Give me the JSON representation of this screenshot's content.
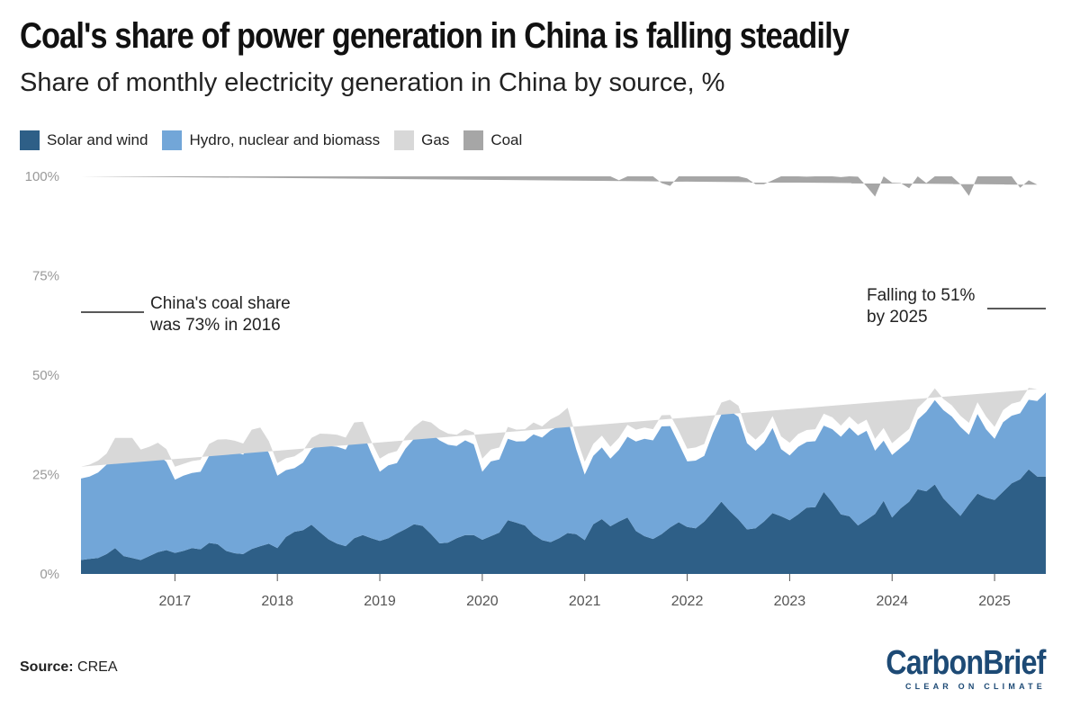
{
  "title": "Coal's share of power generation in China is falling steadily",
  "subtitle": "Share of monthly electricity generation in China by source, %",
  "legend": [
    {
      "label": "Solar and wind",
      "color": "#2e5f87"
    },
    {
      "label": "Hydro, nuclear and biomass",
      "color": "#72a6d8"
    },
    {
      "label": "Gas",
      "color": "#d8d8d8"
    },
    {
      "label": "Coal",
      "color": "#a6a6a6"
    }
  ],
  "source": {
    "label": "Source:",
    "value": "CREA"
  },
  "logo": {
    "name": "CarbonBrief",
    "tagline": "CLEAR ON CLIMATE"
  },
  "chart_data": {
    "type": "area",
    "stacked": true,
    "x_start": "2016-02",
    "x_end": "2025-07",
    "x_ticks": [
      "2017",
      "2018",
      "2019",
      "2020",
      "2021",
      "2022",
      "2023",
      "2024",
      "2025"
    ],
    "y_ticks": [
      "0%",
      "25%",
      "50%",
      "75%",
      "100%"
    ],
    "ylim": [
      0,
      100
    ],
    "grid": false,
    "series": [
      {
        "name": "Solar and wind",
        "color": "#2e5f87",
        "values": [
          3.5,
          3.8,
          4,
          5,
          6.5,
          4.5,
          4,
          3.5,
          4.5,
          5.5,
          6,
          5.3,
          5.8,
          6.5,
          6.2,
          7.8,
          7.5,
          5.8,
          5.2,
          5,
          6.3,
          7,
          7.6,
          6.5,
          9.3,
          10.6,
          11,
          12.4,
          10.5,
          8.7,
          7.6,
          7,
          9,
          9.8,
          9,
          8.3,
          9,
          10.2,
          11.3,
          12.5,
          12.1,
          10,
          7.7,
          7.9,
          9,
          9.8,
          9.8,
          8.6,
          9.5,
          10.4,
          13.5,
          12.9,
          12.2,
          9.9,
          8.5,
          8,
          9,
          10.3,
          10,
          8.5,
          12.5,
          13.8,
          12,
          13.2,
          14.2,
          10.8,
          9.5,
          8.8,
          10,
          11.7,
          13,
          11.8,
          11.5,
          13.2,
          15.6,
          18.2,
          15.8,
          13.7,
          11.2,
          11.5,
          13.2,
          15.3,
          14.5,
          13.5,
          15,
          16.7,
          16.8,
          20.6,
          18,
          15,
          14.5,
          12.2,
          13.6,
          15.1,
          18.4,
          14.2,
          16.5,
          18.2,
          21.3,
          20.8,
          22.5,
          19,
          16.8,
          14.6,
          17.5,
          20.2,
          19.2,
          18.6,
          20.7,
          22.8,
          23.8,
          26.3,
          24.5,
          24.5
        ]
      },
      {
        "name": "Hydro, nuclear and biomass",
        "color": "#72a6d8",
        "values": [
          20.5,
          20.7,
          21.5,
          22.5,
          25,
          27.2,
          27.7,
          25,
          24.5,
          24.5,
          22.2,
          18.4,
          18.9,
          18.9,
          19.5,
          21.9,
          23.3,
          25.6,
          25.5,
          25,
          27.2,
          27,
          22.8,
          18.2,
          16.8,
          16,
          17,
          19,
          22,
          23.5,
          24.4,
          24.3,
          26.3,
          25.7,
          21.4,
          17.4,
          18.3,
          17.7,
          20.2,
          21.5,
          23.7,
          25.3,
          25.9,
          24.6,
          23.2,
          23.8,
          22.8,
          17.1,
          18.8,
          18.4,
          20.5,
          20.4,
          21.2,
          25.2,
          25.8,
          28.1,
          28.2,
          28.7,
          21.4,
          16.5,
          17.2,
          18,
          17,
          18,
          20.3,
          22.5,
          24.5,
          24.8,
          27.1,
          25.5,
          19.8,
          16.5,
          17,
          16.5,
          19.8,
          21.9,
          25.2,
          25.8,
          21.7,
          19.5,
          19.8,
          21.4,
          16.9,
          16.3,
          17,
          16.5,
          16.6,
          16.7,
          18.4,
          19.5,
          22.3,
          22.6,
          22.4,
          15.9,
          15.1,
          15.7,
          15.2,
          15.3,
          17.5,
          20,
          21.2,
          22.2,
          22.8,
          22.4,
          17.5,
          20,
          17.2,
          15.4,
          17.5,
          17,
          16.6,
          17.5,
          19,
          21.1
        ]
      },
      {
        "name": "Gas",
        "color": "#d8d8d8",
        "values": [
          3,
          3,
          3,
          2.8,
          2.7,
          2.5,
          2.5,
          2.8,
          3,
          3,
          3.2,
          3.3,
          3,
          3,
          3,
          3,
          3,
          2.5,
          2.8,
          2.8,
          2.8,
          2.8,
          3,
          3.2,
          3,
          3,
          3,
          2.8,
          2.8,
          3,
          3,
          3,
          2.8,
          2.8,
          3,
          3.3,
          3,
          3,
          3,
          3,
          2.8,
          2.8,
          2.8,
          2.8,
          2.8,
          2.8,
          3,
          3.3,
          3,
          3,
          3,
          3,
          3,
          3,
          2.8,
          2.8,
          2.8,
          2.8,
          3,
          3.2,
          3,
          3,
          3,
          3,
          3,
          3,
          2.8,
          2.8,
          2.8,
          2.8,
          3.2,
          3.2,
          3.3,
          3,
          3.2,
          3,
          2.8,
          2.8,
          2.8,
          2.8,
          2.8,
          3,
          3.2,
          3.2,
          3.2,
          3,
          3,
          3,
          3,
          2.8,
          2.8,
          2.8,
          2.8,
          3,
          3.2,
          3,
          3,
          3,
          3,
          3,
          3,
          2.8,
          2.8,
          2.8,
          3,
          3,
          3.2,
          3,
          3,
          3,
          3,
          3,
          3
        ]
      },
      {
        "name": "Coal",
        "color": "#a6a6a6",
        "values": [
          73,
          72.5,
          71.5,
          69.7,
          65.8,
          65.8,
          65.8,
          68.7,
          68,
          67,
          68.6,
          73,
          72.3,
          71.6,
          71.3,
          67.3,
          66.2,
          66.1,
          66.5,
          67.2,
          63.7,
          63.2,
          66.6,
          72.1,
          70.9,
          70.4,
          69,
          65.8,
          64.7,
          64.8,
          65,
          65.7,
          61.9,
          61.7,
          66.6,
          71,
          69.7,
          69.1,
          65.5,
          63,
          61.4,
          61.9,
          63.6,
          64.7,
          65,
          63.6,
          64.4,
          71,
          68.7,
          68.2,
          63,
          63.7,
          63.6,
          61.9,
          62.9,
          61.1,
          60,
          58.2,
          65.6,
          71.8,
          67.3,
          65.2,
          68,
          64.8,
          62.5,
          64,
          63.9,
          63.6,
          58.4,
          57.6,
          65.8,
          69,
          68.2,
          67.3,
          61.4,
          56.9,
          56.2,
          57.7,
          63.8,
          64.2,
          62.2,
          59.3,
          65.4,
          67.5,
          64.8,
          63.7,
          63.6,
          59.7,
          60.6,
          62.5,
          61,
          62.3,
          58.7,
          60.9,
          67.8,
          65.5,
          63.6,
          60.5,
          58.7,
          54.5,
          56.3,
          58.2,
          60.1,
          58.2,
          57.1,
          59.6,
          63.3,
          63.6,
          59.6,
          57.3,
          53.7,
          52.2,
          51.4,
          52.9
        ]
      }
    ],
    "annotations": [
      {
        "text": [
          "China's coal share",
          "was 73% in 2016"
        ]
      },
      {
        "text": [
          "Falling to 51%",
          "by 2025"
        ]
      }
    ]
  }
}
